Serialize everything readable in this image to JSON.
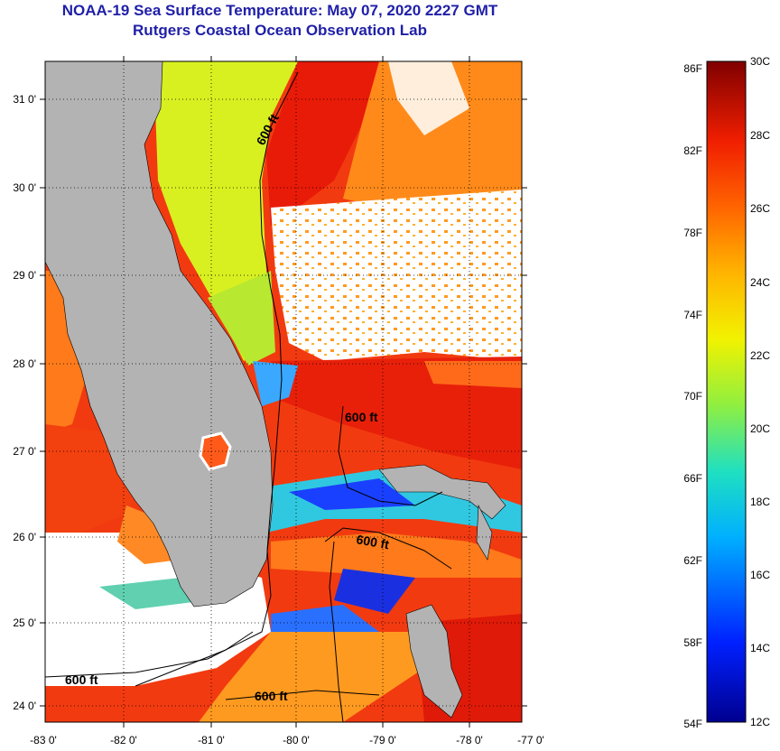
{
  "header": {
    "title": "NOAA-19 Sea Surface Temperature:  May 07, 2020 2227 GMT",
    "subtitle": "Rutgers Coastal Ocean Observation Lab"
  },
  "map": {
    "lat_labels": [
      "31 0'",
      "30 0'",
      "29 0'",
      "28 0'",
      "27 0'",
      "26 0'",
      "25 0'",
      "24 0'"
    ],
    "lon_labels": [
      "-83 0'",
      "-82 0'",
      "-81 0'",
      "-80 0'",
      "-79 0'",
      "-78 0'",
      "-77 0'"
    ],
    "contour_labels": [
      "600 ft",
      "600 ft",
      "600 ft",
      "600 ft",
      "600 ft"
    ]
  },
  "colorbar": {
    "fahrenheit_labels": [
      "86F",
      "82F",
      "78F",
      "74F",
      "70F",
      "66F",
      "62F",
      "58F",
      "54F"
    ],
    "celsius_labels": [
      "30C",
      "28C",
      "26C",
      "24C",
      "22C",
      "20C",
      "18C",
      "16C",
      "14C",
      "12C"
    ]
  },
  "colors": {
    "title": "#1f1fa8",
    "land": "#b3b3b3",
    "cloud": "#ffffff"
  }
}
